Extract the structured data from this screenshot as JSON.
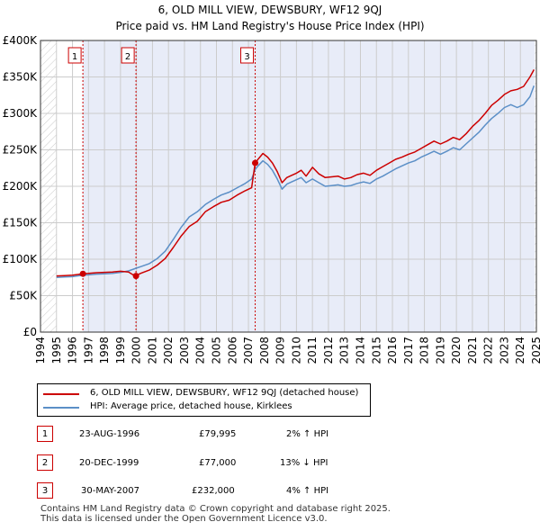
{
  "title_line1": "6, OLD MILL VIEW, DEWSBURY, WF12 9QJ",
  "title_line2": "Price paid vs. HM Land Registry's House Price Index (HPI)",
  "chart_data": {
    "type": "line",
    "xlim": [
      1994,
      2025
    ],
    "ylim": [
      0,
      400000
    ],
    "x_ticks": [
      "1994",
      "1995",
      "1996",
      "1997",
      "1998",
      "1999",
      "2000",
      "2001",
      "2002",
      "2003",
      "2004",
      "2005",
      "2006",
      "2007",
      "2008",
      "2009",
      "2010",
      "2011",
      "2012",
      "2013",
      "2014",
      "2015",
      "2016",
      "2017",
      "2018",
      "2019",
      "2020",
      "2021",
      "2022",
      "2023",
      "2024",
      "2025"
    ],
    "y_ticks": [
      {
        "value": 0,
        "label": "£0"
      },
      {
        "value": 50000,
        "label": "£50K"
      },
      {
        "value": 100000,
        "label": "£100K"
      },
      {
        "value": 150000,
        "label": "£150K"
      },
      {
        "value": 200000,
        "label": "£200K"
      },
      {
        "value": 250000,
        "label": "£250K"
      },
      {
        "value": 300000,
        "label": "£300K"
      },
      {
        "value": 350000,
        "label": "£350K"
      },
      {
        "value": 400000,
        "label": "£400K"
      }
    ],
    "grid": true,
    "hatch_before": 1995,
    "hatch_after": 2024.9,
    "shade_from": 1996.65,
    "colors": {
      "property": "#cc0000",
      "hpi": "#5b8fc7",
      "shade": "#e8ecf8",
      "grid": "#cccccc"
    },
    "series": [
      {
        "name": "6, OLD MILL VIEW, DEWSBURY, WF12 9QJ (detached house)",
        "key": "property",
        "x": [
          1995.0,
          1995.5,
          1996.0,
          1996.65,
          1997.0,
          1997.5,
          1998.0,
          1998.5,
          1999.0,
          1999.5,
          1999.9,
          2000.3,
          2000.8,
          2001.3,
          2001.8,
          2002.3,
          2002.8,
          2003.3,
          2003.8,
          2004.3,
          2004.8,
          2005.3,
          2005.8,
          2006.3,
          2006.8,
          2007.2,
          2007.42,
          2007.6,
          2007.9,
          2008.2,
          2008.5,
          2008.8,
          2009.1,
          2009.4,
          2009.7,
          2010.0,
          2010.3,
          2010.6,
          2011.0,
          2011.4,
          2011.8,
          2012.2,
          2012.6,
          2013.0,
          2013.4,
          2013.8,
          2014.2,
          2014.6,
          2015.0,
          2015.4,
          2015.8,
          2016.2,
          2016.6,
          2017.0,
          2017.4,
          2017.8,
          2018.2,
          2018.6,
          2019.0,
          2019.4,
          2019.8,
          2020.2,
          2020.6,
          2021.0,
          2021.4,
          2021.8,
          2022.2,
          2022.6,
          2023.0,
          2023.4,
          2023.8,
          2024.2,
          2024.6,
          2024.85
        ],
        "y": [
          77000,
          77500,
          78000,
          79995,
          80500,
          81500,
          82000,
          82500,
          83500,
          82500,
          77000,
          81000,
          85000,
          92000,
          101000,
          116000,
          132000,
          145000,
          152000,
          165000,
          172000,
          178000,
          181000,
          188000,
          194000,
          198000,
          232000,
          237000,
          245000,
          240000,
          232000,
          220000,
          205000,
          212000,
          215000,
          218000,
          222000,
          214000,
          226000,
          217000,
          212000,
          213000,
          214000,
          210000,
          212000,
          216000,
          218000,
          215000,
          222000,
          227000,
          232000,
          237000,
          240000,
          244000,
          247000,
          252000,
          257000,
          262000,
          258000,
          262000,
          267000,
          264000,
          272000,
          282000,
          290000,
          300000,
          311000,
          318000,
          326000,
          331000,
          333000,
          337000,
          350000,
          360000
        ]
      },
      {
        "name": "HPI: Average price, detached house, Kirklees",
        "key": "hpi",
        "x": [
          1995.0,
          1995.5,
          1996.0,
          1996.65,
          1997.0,
          1997.5,
          1998.0,
          1998.5,
          1999.0,
          1999.5,
          1999.9,
          2000.3,
          2000.8,
          2001.3,
          2001.8,
          2002.3,
          2002.8,
          2003.3,
          2003.8,
          2004.3,
          2004.8,
          2005.3,
          2005.8,
          2006.3,
          2006.8,
          2007.2,
          2007.42,
          2007.6,
          2007.9,
          2008.2,
          2008.5,
          2008.8,
          2009.1,
          2009.4,
          2009.7,
          2010.0,
          2010.3,
          2010.6,
          2011.0,
          2011.4,
          2011.8,
          2012.2,
          2012.6,
          2013.0,
          2013.4,
          2013.8,
          2014.2,
          2014.6,
          2015.0,
          2015.4,
          2015.8,
          2016.2,
          2016.6,
          2017.0,
          2017.4,
          2017.8,
          2018.2,
          2018.6,
          2019.0,
          2019.4,
          2019.8,
          2020.2,
          2020.6,
          2021.0,
          2021.4,
          2021.8,
          2022.2,
          2022.6,
          2023.0,
          2023.4,
          2023.8,
          2024.2,
          2024.6,
          2024.85
        ],
        "y": [
          75000,
          75500,
          76000,
          78000,
          78500,
          79500,
          80000,
          80500,
          82000,
          84000,
          87000,
          90000,
          94000,
          101000,
          111000,
          127000,
          144000,
          158000,
          165000,
          175000,
          182000,
          188000,
          192000,
          198000,
          204000,
          210000,
          223000,
          228000,
          235000,
          230000,
          222000,
          210000,
          196000,
          203000,
          206000,
          209000,
          212000,
          205000,
          210000,
          205000,
          200000,
          201000,
          202000,
          200000,
          201000,
          204000,
          206000,
          204000,
          210000,
          214000,
          219000,
          224000,
          228000,
          232000,
          235000,
          240000,
          244000,
          248000,
          244000,
          248000,
          253000,
          250000,
          258000,
          266000,
          274000,
          284000,
          293000,
          300000,
          308000,
          312000,
          308000,
          312000,
          323000,
          338000
        ]
      }
    ],
    "sales": [
      {
        "label": "1",
        "x": 1996.65,
        "y": 79995
      },
      {
        "label": "2",
        "x": 1999.97,
        "y": 77000
      },
      {
        "label": "3",
        "x": 2007.42,
        "y": 232000
      }
    ]
  },
  "legend": {
    "property": "6, OLD MILL VIEW, DEWSBURY, WF12 9QJ (detached house)",
    "hpi": "HPI: Average price, detached house, Kirklees"
  },
  "sales_table": [
    {
      "label": "1",
      "date": "23-AUG-1996",
      "price": "£79,995",
      "hpi": "2% ↑ HPI"
    },
    {
      "label": "2",
      "date": "20-DEC-1999",
      "price": "£77,000",
      "hpi": "13% ↓ HPI"
    },
    {
      "label": "3",
      "date": "30-MAY-2007",
      "price": "£232,000",
      "hpi": "4% ↑ HPI"
    }
  ],
  "footer": {
    "line1": "Contains HM Land Registry data © Crown copyright and database right 2025.",
    "line2": "This data is licensed under the Open Government Licence v3.0."
  }
}
